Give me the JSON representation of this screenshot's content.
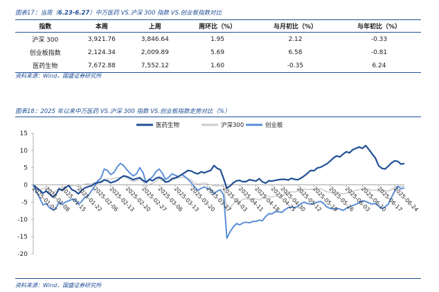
{
  "table_section": {
    "caption_prefix": "图表17：当周（",
    "caption_range": "6.23-6.27",
    "caption_suffix": "）中万医药 VS.沪深 300 指数 VS.创业板指数对比",
    "headers": [
      "指数",
      "本周",
      "上周",
      "周环比（%）",
      "与月初比（%）",
      "与年初比（%）"
    ],
    "rows": [
      [
        "沪深 300",
        "3,921.76",
        "3,846.64",
        "1.95",
        "2.12",
        "-0.33"
      ],
      [
        "创业板指数",
        "2,124.34",
        "2,009.89",
        "5.69",
        "6.58",
        "-0.81"
      ],
      [
        "医药生物",
        "7,672.88",
        "7,552.12",
        "1.60",
        "-0.35",
        "6.24"
      ]
    ],
    "source": "资料来源：Wind，国盛证券研究所"
  },
  "chart_section": {
    "caption": "图表18：2025 年以来中万医药 VS.沪深 300 指数 VS.创业板指数走势对比（%）",
    "source": "资料来源：Wind，国盛证券研究所"
  },
  "chart_data": {
    "type": "line",
    "x": [
      "2025-01-02",
      "2025-01-03",
      "2025-01-06",
      "2025-01-07",
      "2025-01-08",
      "2025-01-09",
      "2025-01-10",
      "2025-01-13",
      "2025-01-14",
      "2025-01-15",
      "2025-01-16",
      "2025-01-17",
      "2025-01-20",
      "2025-01-21",
      "2025-01-22",
      "2025-01-23",
      "2025-01-24",
      "2025-01-27",
      "2025-02-05",
      "2025-02-06",
      "2025-02-07",
      "2025-02-10",
      "2025-02-11",
      "2025-02-12",
      "2025-02-13",
      "2025-02-14",
      "2025-02-17",
      "2025-02-18",
      "2025-02-19",
      "2025-02-20",
      "2025-02-21",
      "2025-02-24",
      "2025-02-25",
      "2025-02-26",
      "2025-02-27",
      "2025-02-28",
      "2025-03-03",
      "2025-03-04",
      "2025-03-05",
      "2025-03-06",
      "2025-03-07",
      "2025-03-10",
      "2025-03-11",
      "2025-03-12",
      "2025-03-13",
      "2025-03-14",
      "2025-03-17",
      "2025-03-18",
      "2025-03-19",
      "2025-03-20",
      "2025-03-21",
      "2025-03-24",
      "2025-03-25",
      "2025-03-26",
      "2025-03-27",
      "2025-03-28",
      "2025-03-31",
      "2025-04-01",
      "2025-04-02",
      "2025-04-03",
      "2025-04-07",
      "2025-04-08",
      "2025-04-09",
      "2025-04-10",
      "2025-04-11",
      "2025-04-14",
      "2025-04-15",
      "2025-04-16",
      "2025-04-17",
      "2025-04-18",
      "2025-04-21",
      "2025-04-22",
      "2025-04-23",
      "2025-04-24",
      "2025-04-25",
      "2025-04-28",
      "2025-04-29",
      "2025-04-30",
      "2025-05-06",
      "2025-05-07",
      "2025-05-08",
      "2025-05-09",
      "2025-05-12",
      "2025-05-13",
      "2025-05-14",
      "2025-05-15",
      "2025-05-16",
      "2025-05-19",
      "2025-05-20",
      "2025-05-21",
      "2025-05-22",
      "2025-05-23",
      "2025-05-26",
      "2025-05-27",
      "2025-05-28",
      "2025-05-29",
      "2025-05-30",
      "2025-06-03",
      "2025-06-04",
      "2025-06-05",
      "2025-06-06",
      "2025-06-09",
      "2025-06-10",
      "2025-06-11",
      "2025-06-12",
      "2025-06-13",
      "2025-06-16",
      "2025-06-17",
      "2025-06-18",
      "2025-06-19",
      "2025-06-20",
      "2025-06-23",
      "2025-06-24",
      "2025-06-25",
      "2025-06-26",
      "2025-06-27"
    ],
    "x_tick_labels": [
      "2025-01-02",
      "2025-01-08",
      "2025-01-15",
      "2025-01-22",
      "2025-02-06",
      "2025-02-13",
      "2025-02-20",
      "2025-02-27",
      "2025-03-06",
      "2025-03-13",
      "2025-03-20",
      "2025-03-27",
      "2025-04-03",
      "2025-04-11",
      "2025-04-18",
      "2025-04-25",
      "2025-04-30",
      "2025-05-12",
      "2025-05-19",
      "2025-05-26",
      "2025-06-03",
      "2025-06-10",
      "2025-06-17",
      "2025-06-24"
    ],
    "ylim": [
      -20,
      15
    ],
    "y_ticks": [
      -20,
      -15,
      -10,
      -5,
      0,
      5,
      10,
      15
    ],
    "legend_position": "top",
    "series": [
      {
        "name": "医药生物",
        "color": "#1f4e96",
        "width": 2.2,
        "values": [
          0,
          -0.8,
          -1.5,
          -2.4,
          -1.8,
          -2.6,
          -3.5,
          -2.8,
          -1.2,
          -1.6,
          -0.8,
          -0.2,
          -1.4,
          -1.8,
          -2.6,
          -1.6,
          -0.9,
          -0.5,
          -0.3,
          0.4,
          0.6,
          0.8,
          1.4,
          1.2,
          0.6,
          0.9,
          1.3,
          2.0,
          2.6,
          2.4,
          2.0,
          1.5,
          1.8,
          2.1,
          1.3,
          0.8,
          1.6,
          1.2,
          1.9,
          2.2,
          1.8,
          0.8,
          1.0,
          1.8,
          2.0,
          2.4,
          3.0,
          3.6,
          4.2,
          4.0,
          3.5,
          3.2,
          3.8,
          3.5,
          3.9,
          4.2,
          5.6,
          4.8,
          4.4,
          1.8,
          -1.0,
          -0.3,
          0.6,
          1.2,
          1.3,
          0.9,
          1.0,
          1.5,
          1.3,
          1.1,
          1.8,
          0.9,
          0.5,
          1.2,
          1.1,
          1.3,
          1.5,
          1.6,
          1.6,
          1.4,
          1.9,
          1.6,
          1.5,
          2.0,
          2.6,
          3.4,
          4.2,
          4.1,
          4.9,
          5.1,
          5.6,
          6.1,
          6.9,
          7.8,
          8.4,
          8.1,
          8.9,
          9.6,
          9.3,
          10.2,
          10.6,
          11.0,
          10.6,
          11.4,
          10.3,
          9.0,
          7.8,
          5.6,
          4.8,
          4.6,
          5.4,
          6.4,
          7.0,
          6.8,
          6.0,
          6.2
        ]
      },
      {
        "name": "沪深300",
        "color": "#cccccc",
        "width": 1.6,
        "values": [
          0,
          -1.0,
          -1.5,
          -1.0,
          -0.8,
          -1.2,
          -2.3,
          -1.8,
          -0.8,
          -0.9,
          -0.5,
          -0.4,
          -0.2,
          0.0,
          -0.8,
          0.0,
          0.2,
          0.4,
          0.2,
          0.6,
          1.0,
          1.2,
          1.6,
          1.8,
          1.6,
          1.9,
          2.1,
          2.0,
          2.4,
          2.0,
          1.4,
          1.0,
          1.2,
          1.6,
          1.0,
          -0.4,
          0.2,
          0.4,
          1.0,
          1.8,
          1.2,
          0.8,
          1.2,
          1.4,
          1.8,
          2.0,
          2.2,
          2.1,
          1.8,
          1.4,
          0.6,
          0.2,
          0.4,
          0.6,
          0.3,
          0.0,
          -0.2,
          -0.4,
          0.0,
          -0.6,
          -7.5,
          -6.8,
          -5.4,
          -4.6,
          -4.8,
          -4.2,
          -4.0,
          -4.3,
          -4.1,
          -4.0,
          -4.3,
          -3.9,
          -3.6,
          -3.4,
          -3.5,
          -3.2,
          -3.4,
          -3.4,
          -2.7,
          -2.2,
          -2.0,
          -2.1,
          -1.8,
          -1.4,
          -1.2,
          -1.4,
          -1.3,
          -1.4,
          -1.2,
          -1.1,
          -1.6,
          -2.0,
          -2.2,
          -2.4,
          -2.2,
          -2.4,
          -2.6,
          -2.4,
          -2.1,
          -1.8,
          -1.6,
          -1.4,
          -1.2,
          -1.1,
          -1.3,
          -1.6,
          -1.5,
          -1.8,
          -1.7,
          -1.6,
          -1.8,
          -1.3,
          -0.8,
          -0.4,
          -0.5,
          -0.3
        ]
      },
      {
        "name": "创业板",
        "color": "#5b8ed8",
        "width": 2.0,
        "values": [
          0,
          -2.0,
          -3.8,
          -5.8,
          -5.4,
          -6.6,
          -7.2,
          -6.8,
          -5.0,
          -5.6,
          -5.0,
          -4.6,
          -4.2,
          -4.4,
          -5.6,
          -4.8,
          -3.6,
          -3.2,
          -1.8,
          -0.4,
          1.2,
          2.0,
          4.6,
          4.2,
          3.0,
          3.6,
          5.2,
          6.2,
          5.6,
          4.4,
          3.4,
          2.6,
          3.2,
          5.0,
          3.6,
          0.6,
          1.6,
          2.4,
          3.8,
          4.6,
          3.4,
          1.6,
          2.2,
          3.2,
          2.8,
          2.4,
          3.0,
          2.4,
          1.6,
          0.6,
          -0.6,
          -1.6,
          -1.0,
          -0.6,
          -1.0,
          -1.4,
          -2.6,
          -1.8,
          -1.4,
          -3.0,
          -15.5,
          -13.6,
          -12.2,
          -11.2,
          -11.6,
          -11.0,
          -10.8,
          -11.0,
          -10.6,
          -10.6,
          -10.2,
          -10.4,
          -9.2,
          -8.4,
          -8.4,
          -7.8,
          -7.8,
          -8.0,
          -7.2,
          -6.6,
          -6.4,
          -6.6,
          -6.2,
          -5.4,
          -5.0,
          -5.4,
          -5.6,
          -5.4,
          -5.0,
          -4.8,
          -5.4,
          -6.4,
          -6.8,
          -7.0,
          -6.8,
          -7.0,
          -7.4,
          -6.8,
          -6.4,
          -6.0,
          -5.6,
          -5.2,
          -4.6,
          -4.8,
          -5.2,
          -5.6,
          -5.4,
          -6.2,
          -6.8,
          -6.4,
          -5.6,
          -3.6,
          -1.8,
          -0.4,
          -1.2,
          -0.8
        ]
      }
    ]
  }
}
